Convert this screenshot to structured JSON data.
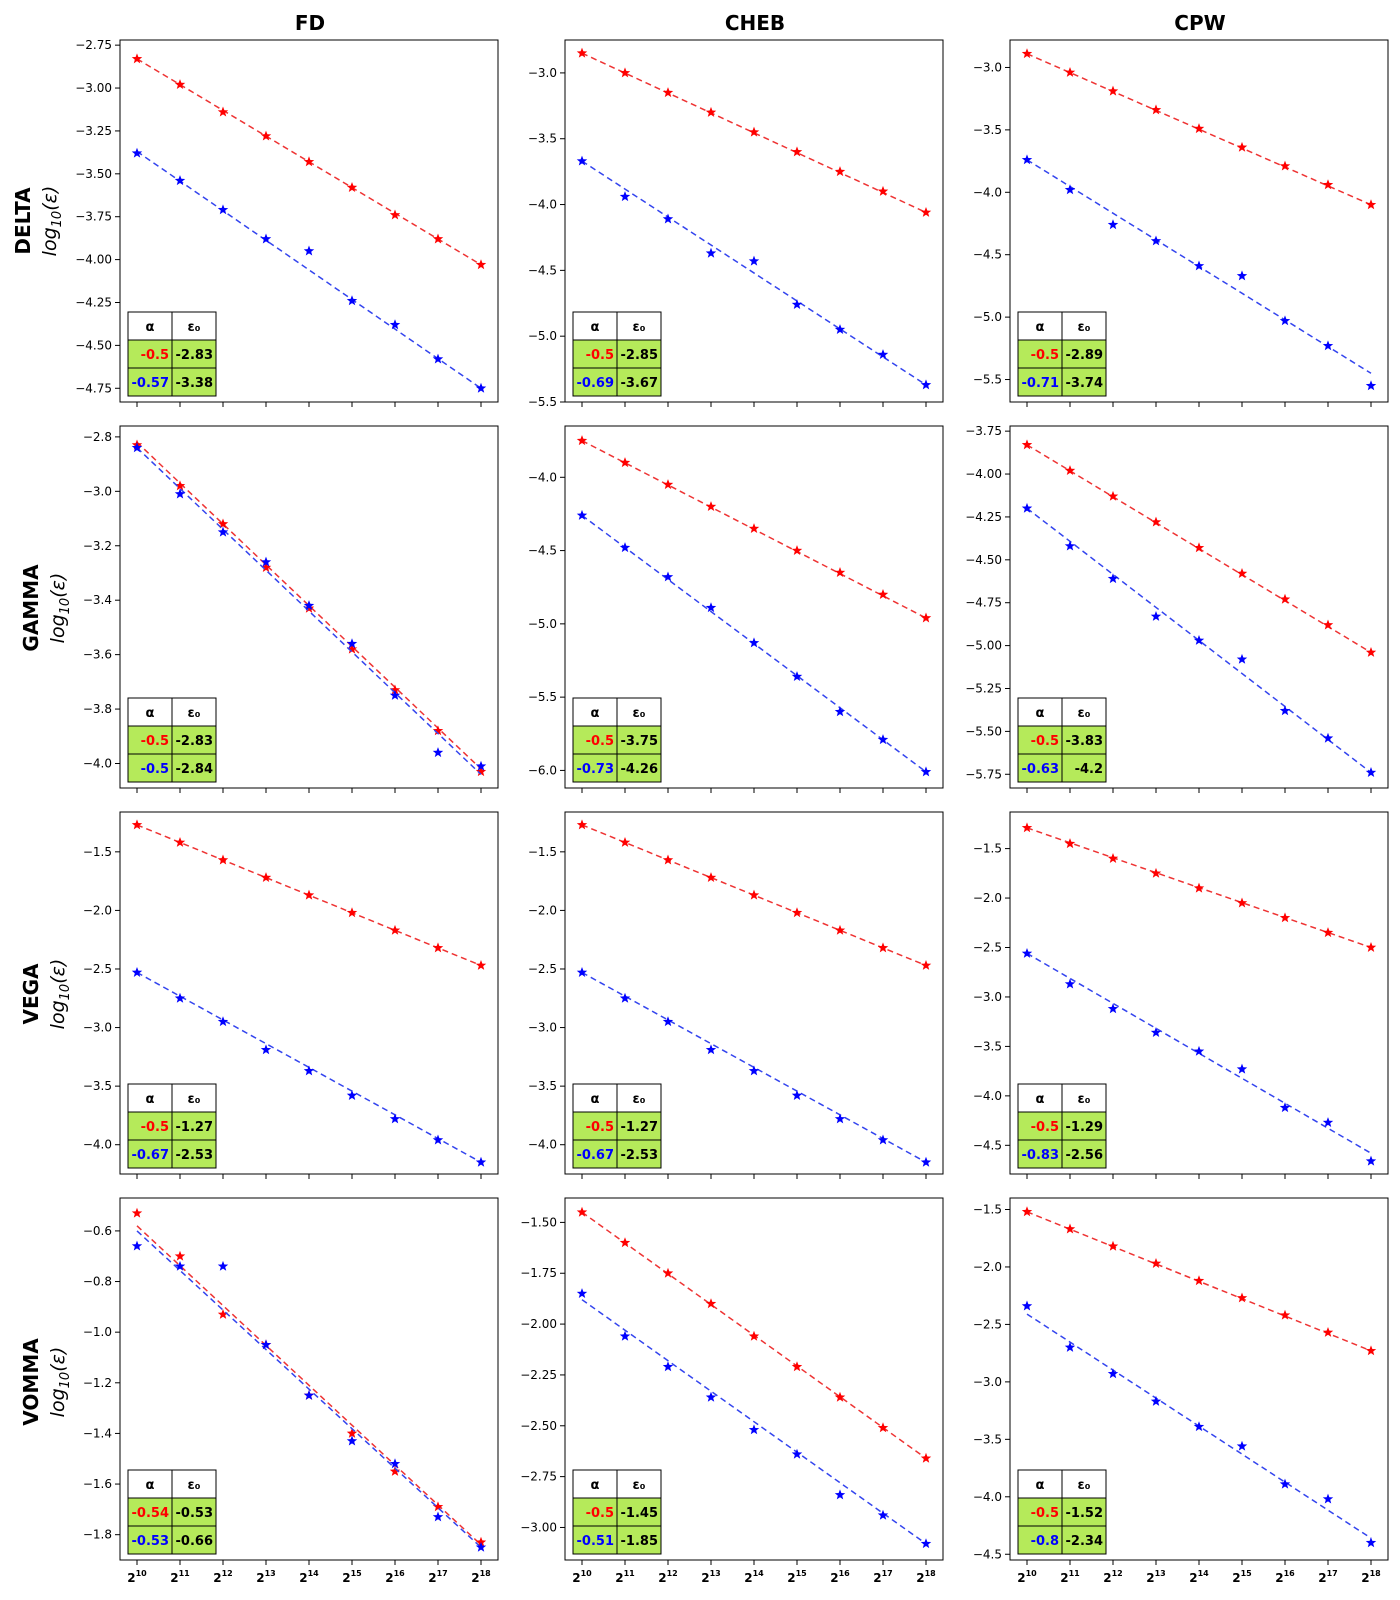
{
  "figure": {
    "columns": [
      "FD",
      "CHEB",
      "CPW"
    ],
    "rows": [
      "DELTA",
      "GAMMA",
      "VEGA",
      "VOMMA"
    ],
    "ylabel_base": "log",
    "ylabel_sub": "10",
    "ylabel_arg": "(ε)",
    "x_base": "2",
    "x_exponents": [
      "10",
      "11",
      "12",
      "13",
      "14",
      "15",
      "16",
      "17",
      "18"
    ],
    "table_headers": [
      "α",
      "ε₀"
    ],
    "colors": {
      "red": "#ff0000",
      "blue": "#0000ff",
      "table_fill": "#b5ea5a",
      "fit_red": "#ee3333",
      "fit_blue": "#3344ee"
    }
  },
  "chart_data": [
    {
      "type": "line",
      "row": "DELTA",
      "column": "FD",
      "ylim": [
        -4.83,
        -2.72
      ],
      "yticks": [
        -2.75,
        -3.0,
        -3.25,
        -3.5,
        -3.75,
        -4.0,
        -4.25,
        -4.5,
        -4.75
      ],
      "ytick_labels": [
        "−2.75",
        "−3.00",
        "−3.25",
        "−3.50",
        "−3.75",
        "−4.00",
        "−4.25",
        "−4.50",
        "−4.75"
      ],
      "x": [
        10,
        11,
        12,
        13,
        14,
        15,
        16,
        17,
        18
      ],
      "series": [
        {
          "name": "red",
          "values": [
            -2.83,
            -2.98,
            -3.14,
            -3.28,
            -3.43,
            -3.58,
            -3.74,
            -3.88,
            -4.03
          ],
          "fit": {
            "alpha": "-0.5",
            "eps0": "-2.83",
            "start": -2.83,
            "end": -4.03
          }
        },
        {
          "name": "blue",
          "values": [
            -3.38,
            -3.54,
            -3.71,
            -3.88,
            -3.95,
            -4.24,
            -4.38,
            -4.58,
            -4.75
          ],
          "fit": {
            "alpha": "-0.57",
            "eps0": "-3.38",
            "start": -3.37,
            "end": -4.75
          }
        }
      ]
    },
    {
      "type": "line",
      "row": "DELTA",
      "column": "CHEB",
      "ylim": [
        -5.5,
        -2.75
      ],
      "yticks": [
        -3.0,
        -3.5,
        -4.0,
        -4.5,
        -5.0,
        -5.5
      ],
      "ytick_labels": [
        "−3.0",
        "−3.5",
        "−4.0",
        "−4.5",
        "−5.0",
        "−5.5"
      ],
      "x": [
        10,
        11,
        12,
        13,
        14,
        15,
        16,
        17,
        18
      ],
      "series": [
        {
          "name": "red",
          "values": [
            -2.85,
            -3.0,
            -3.15,
            -3.3,
            -3.45,
            -3.6,
            -3.75,
            -3.9,
            -4.06
          ],
          "fit": {
            "alpha": "-0.5",
            "eps0": "-2.85",
            "start": -2.85,
            "end": -4.06
          }
        },
        {
          "name": "blue",
          "values": [
            -3.67,
            -3.94,
            -4.11,
            -4.37,
            -4.43,
            -4.76,
            -4.95,
            -5.14,
            -5.37
          ],
          "fit": {
            "alpha": "-0.69",
            "eps0": "-3.67",
            "start": -3.67,
            "end": -5.37
          }
        }
      ]
    },
    {
      "type": "line",
      "row": "DELTA",
      "column": "CPW",
      "ylim": [
        -5.68,
        -2.78
      ],
      "yticks": [
        -3.0,
        -3.5,
        -4.0,
        -4.5,
        -5.0,
        -5.5
      ],
      "ytick_labels": [
        "−3.0",
        "−3.5",
        "−4.0",
        "−4.5",
        "−5.0",
        "−5.5"
      ],
      "x": [
        10,
        11,
        12,
        13,
        14,
        15,
        16,
        17,
        18
      ],
      "series": [
        {
          "name": "red",
          "values": [
            -2.89,
            -3.04,
            -3.19,
            -3.34,
            -3.49,
            -3.64,
            -3.79,
            -3.94,
            -4.1
          ],
          "fit": {
            "alpha": "-0.5",
            "eps0": "-2.89",
            "start": -2.89,
            "end": -4.1
          }
        },
        {
          "name": "blue",
          "values": [
            -3.74,
            -3.98,
            -4.26,
            -4.39,
            -4.59,
            -4.67,
            -5.03,
            -5.23,
            -5.55
          ],
          "fit": {
            "alpha": "-0.71",
            "eps0": "-3.74",
            "start": -3.74,
            "end": -5.45
          }
        }
      ]
    },
    {
      "type": "line",
      "row": "GAMMA",
      "column": "FD",
      "ylim": [
        -4.09,
        -2.76
      ],
      "yticks": [
        -2.8,
        -3.0,
        -3.2,
        -3.4,
        -3.6,
        -3.8,
        -4.0
      ],
      "ytick_labels": [
        "−2.8",
        "−3.0",
        "−3.2",
        "−3.4",
        "−3.6",
        "−3.8",
        "−4.0"
      ],
      "x": [
        10,
        11,
        12,
        13,
        14,
        15,
        16,
        17,
        18
      ],
      "series": [
        {
          "name": "red",
          "values": [
            -2.83,
            -2.98,
            -3.12,
            -3.28,
            -3.43,
            -3.58,
            -3.73,
            -3.88,
            -4.03
          ],
          "fit": {
            "alpha": "-0.5",
            "eps0": "-2.83",
            "start": -2.82,
            "end": -4.02
          }
        },
        {
          "name": "blue",
          "values": [
            -2.84,
            -3.01,
            -3.15,
            -3.26,
            -3.42,
            -3.56,
            -3.75,
            -3.96,
            -4.01
          ],
          "fit": {
            "alpha": "-0.5",
            "eps0": "-2.84",
            "start": -2.84,
            "end": -4.04
          }
        }
      ]
    },
    {
      "type": "line",
      "row": "GAMMA",
      "column": "CHEB",
      "ylim": [
        -6.12,
        -3.65
      ],
      "yticks": [
        -4.0,
        -4.5,
        -5.0,
        -5.5,
        -6.0
      ],
      "ytick_labels": [
        "−4.0",
        "−4.5",
        "−5.0",
        "−5.5",
        "−6.0"
      ],
      "x": [
        10,
        11,
        12,
        13,
        14,
        15,
        16,
        17,
        18
      ],
      "series": [
        {
          "name": "red",
          "values": [
            -3.75,
            -3.9,
            -4.05,
            -4.2,
            -4.35,
            -4.5,
            -4.65,
            -4.8,
            -4.96
          ],
          "fit": {
            "alpha": "-0.5",
            "eps0": "-3.75",
            "start": -3.75,
            "end": -4.96
          }
        },
        {
          "name": "blue",
          "values": [
            -4.26,
            -4.48,
            -4.68,
            -4.89,
            -5.13,
            -5.36,
            -5.6,
            -5.79,
            -6.01
          ],
          "fit": {
            "alpha": "-0.73",
            "eps0": "-4.26",
            "start": -4.26,
            "end": -6.01
          }
        }
      ]
    },
    {
      "type": "line",
      "row": "GAMMA",
      "column": "CPW",
      "ylim": [
        -5.83,
        -3.72
      ],
      "yticks": [
        -3.75,
        -4.0,
        -4.25,
        -4.5,
        -4.75,
        -5.0,
        -5.25,
        -5.5,
        -5.75
      ],
      "ytick_labels": [
        "−3.75",
        "−4.00",
        "−4.25",
        "−4.50",
        "−4.75",
        "−5.00",
        "−5.25",
        "−5.50",
        "−5.75"
      ],
      "x": [
        10,
        11,
        12,
        13,
        14,
        15,
        16,
        17,
        18
      ],
      "series": [
        {
          "name": "red",
          "values": [
            -3.83,
            -3.98,
            -4.13,
            -4.28,
            -4.43,
            -4.58,
            -4.73,
            -4.88,
            -5.04
          ],
          "fit": {
            "alpha": "-0.5",
            "eps0": "-3.83",
            "start": -3.83,
            "end": -5.04
          }
        },
        {
          "name": "blue",
          "values": [
            -4.2,
            -4.42,
            -4.61,
            -4.83,
            -4.97,
            -5.08,
            -5.38,
            -5.54,
            -5.74
          ],
          "fit": {
            "alpha": "-0.63",
            "eps0": "-4.2",
            "start": -4.2,
            "end": -5.74
          }
        }
      ]
    },
    {
      "type": "line",
      "row": "VEGA",
      "column": "FD",
      "ylim": [
        -4.25,
        -1.16
      ],
      "yticks": [
        -1.5,
        -2.0,
        -2.5,
        -3.0,
        -3.5,
        -4.0
      ],
      "ytick_labels": [
        "−1.5",
        "−2.0",
        "−2.5",
        "−3.0",
        "−3.5",
        "−4.0"
      ],
      "x": [
        10,
        11,
        12,
        13,
        14,
        15,
        16,
        17,
        18
      ],
      "series": [
        {
          "name": "red",
          "values": [
            -1.27,
            -1.42,
            -1.57,
            -1.72,
            -1.87,
            -2.02,
            -2.17,
            -2.32,
            -2.47
          ],
          "fit": {
            "alpha": "-0.5",
            "eps0": "-1.27",
            "start": -1.27,
            "end": -2.47
          }
        },
        {
          "name": "blue",
          "values": [
            -2.53,
            -2.75,
            -2.95,
            -3.19,
            -3.37,
            -3.58,
            -3.78,
            -3.96,
            -4.15
          ],
          "fit": {
            "alpha": "-0.67",
            "eps0": "-2.53",
            "start": -2.53,
            "end": -4.15
          }
        }
      ]
    },
    {
      "type": "line",
      "row": "VEGA",
      "column": "CHEB",
      "ylim": [
        -4.25,
        -1.16
      ],
      "yticks": [
        -1.5,
        -2.0,
        -2.5,
        -3.0,
        -3.5,
        -4.0
      ],
      "ytick_labels": [
        "−1.5",
        "−2.0",
        "−2.5",
        "−3.0",
        "−3.5",
        "−4.0"
      ],
      "x": [
        10,
        11,
        12,
        13,
        14,
        15,
        16,
        17,
        18
      ],
      "series": [
        {
          "name": "red",
          "values": [
            -1.27,
            -1.42,
            -1.57,
            -1.72,
            -1.87,
            -2.02,
            -2.17,
            -2.32,
            -2.47
          ],
          "fit": {
            "alpha": "-0.5",
            "eps0": "-1.27",
            "start": -1.27,
            "end": -2.47
          }
        },
        {
          "name": "blue",
          "values": [
            -2.53,
            -2.75,
            -2.95,
            -3.19,
            -3.37,
            -3.58,
            -3.78,
            -3.96,
            -4.15
          ],
          "fit": {
            "alpha": "-0.67",
            "eps0": "-2.53",
            "start": -2.53,
            "end": -4.15
          }
        }
      ]
    },
    {
      "type": "line",
      "row": "VEGA",
      "column": "CPW",
      "ylim": [
        -4.79,
        -1.13
      ],
      "yticks": [
        -1.5,
        -2.0,
        -2.5,
        -3.0,
        -3.5,
        -4.0,
        -4.5
      ],
      "ytick_labels": [
        "−1.5",
        "−2.0",
        "−2.5",
        "−3.0",
        "−3.5",
        "−4.0",
        "−4.5"
      ],
      "x": [
        10,
        11,
        12,
        13,
        14,
        15,
        16,
        17,
        18
      ],
      "series": [
        {
          "name": "red",
          "values": [
            -1.29,
            -1.45,
            -1.6,
            -1.75,
            -1.9,
            -2.05,
            -2.2,
            -2.35,
            -2.5
          ],
          "fit": {
            "alpha": "-0.5",
            "eps0": "-1.29",
            "start": -1.29,
            "end": -2.5
          }
        },
        {
          "name": "blue",
          "values": [
            -2.56,
            -2.87,
            -3.12,
            -3.36,
            -3.55,
            -3.73,
            -4.12,
            -4.27,
            -4.66
          ],
          "fit": {
            "alpha": "-0.83",
            "eps0": "-2.56",
            "start": -2.56,
            "end": -4.58
          }
        }
      ]
    },
    {
      "type": "line",
      "row": "VOMMA",
      "column": "FD",
      "ylim": [
        -1.9,
        -0.47
      ],
      "yticks": [
        -0.6,
        -0.8,
        -1.0,
        -1.2,
        -1.4,
        -1.6,
        -1.8
      ],
      "ytick_labels": [
        "−0.6",
        "−0.8",
        "−1.0",
        "−1.2",
        "−1.4",
        "−1.6",
        "−1.8"
      ],
      "x": [
        10,
        11,
        12,
        13,
        14,
        15,
        16,
        17,
        18
      ],
      "series": [
        {
          "name": "red",
          "values": [
            -0.53,
            -0.7,
            -0.93,
            -1.05,
            -1.25,
            -1.4,
            -1.55,
            -1.69,
            -1.83
          ],
          "fit": {
            "alpha": "-0.54",
            "eps0": "-0.53",
            "start": -0.58,
            "end": -1.84
          }
        },
        {
          "name": "blue",
          "values": [
            -0.66,
            -0.74,
            -0.74,
            -1.05,
            -1.25,
            -1.43,
            -1.52,
            -1.73,
            -1.85
          ],
          "fit": {
            "alpha": "-0.53",
            "eps0": "-0.66",
            "start": -0.6,
            "end": -1.85
          }
        }
      ]
    },
    {
      "type": "line",
      "row": "VOMMA",
      "column": "CHEB",
      "ylim": [
        -3.16,
        -1.38
      ],
      "yticks": [
        -1.5,
        -1.75,
        -2.0,
        -2.25,
        -2.5,
        -2.75,
        -3.0
      ],
      "ytick_labels": [
        "−1.50",
        "−1.75",
        "−2.00",
        "−2.25",
        "−2.50",
        "−2.75",
        "−3.00"
      ],
      "x": [
        10,
        11,
        12,
        13,
        14,
        15,
        16,
        17,
        18
      ],
      "series": [
        {
          "name": "red",
          "values": [
            -1.45,
            -1.6,
            -1.75,
            -1.9,
            -2.06,
            -2.21,
            -2.36,
            -2.51,
            -2.66
          ],
          "fit": {
            "alpha": "-0.5",
            "eps0": "-1.45",
            "start": -1.45,
            "end": -2.66
          }
        },
        {
          "name": "blue",
          "values": [
            -1.85,
            -2.06,
            -2.21,
            -2.36,
            -2.52,
            -2.64,
            -2.84,
            -2.94,
            -3.08
          ],
          "fit": {
            "alpha": "-0.51",
            "eps0": "-1.85",
            "start": -1.88,
            "end": -3.08
          }
        }
      ]
    },
    {
      "type": "line",
      "row": "VOMMA",
      "column": "CPW",
      "ylim": [
        -4.55,
        -1.4
      ],
      "yticks": [
        -1.5,
        -2.0,
        -2.5,
        -3.0,
        -3.5,
        -4.0,
        -4.5
      ],
      "ytick_labels": [
        "−1.5",
        "−2.0",
        "−2.5",
        "−3.0",
        "−3.5",
        "−4.0",
        "−4.5"
      ],
      "x": [
        10,
        11,
        12,
        13,
        14,
        15,
        16,
        17,
        18
      ],
      "series": [
        {
          "name": "red",
          "values": [
            -1.52,
            -1.67,
            -1.82,
            -1.97,
            -2.12,
            -2.27,
            -2.42,
            -2.57,
            -2.73
          ],
          "fit": {
            "alpha": "-0.5",
            "eps0": "-1.52",
            "start": -1.52,
            "end": -2.73
          }
        },
        {
          "name": "blue",
          "values": [
            -2.34,
            -2.7,
            -2.93,
            -3.17,
            -3.39,
            -3.56,
            -3.89,
            -4.02,
            -4.4
          ],
          "fit": {
            "alpha": "-0.8",
            "eps0": "-2.34",
            "start": -2.41,
            "end": -4.36
          }
        }
      ]
    }
  ]
}
